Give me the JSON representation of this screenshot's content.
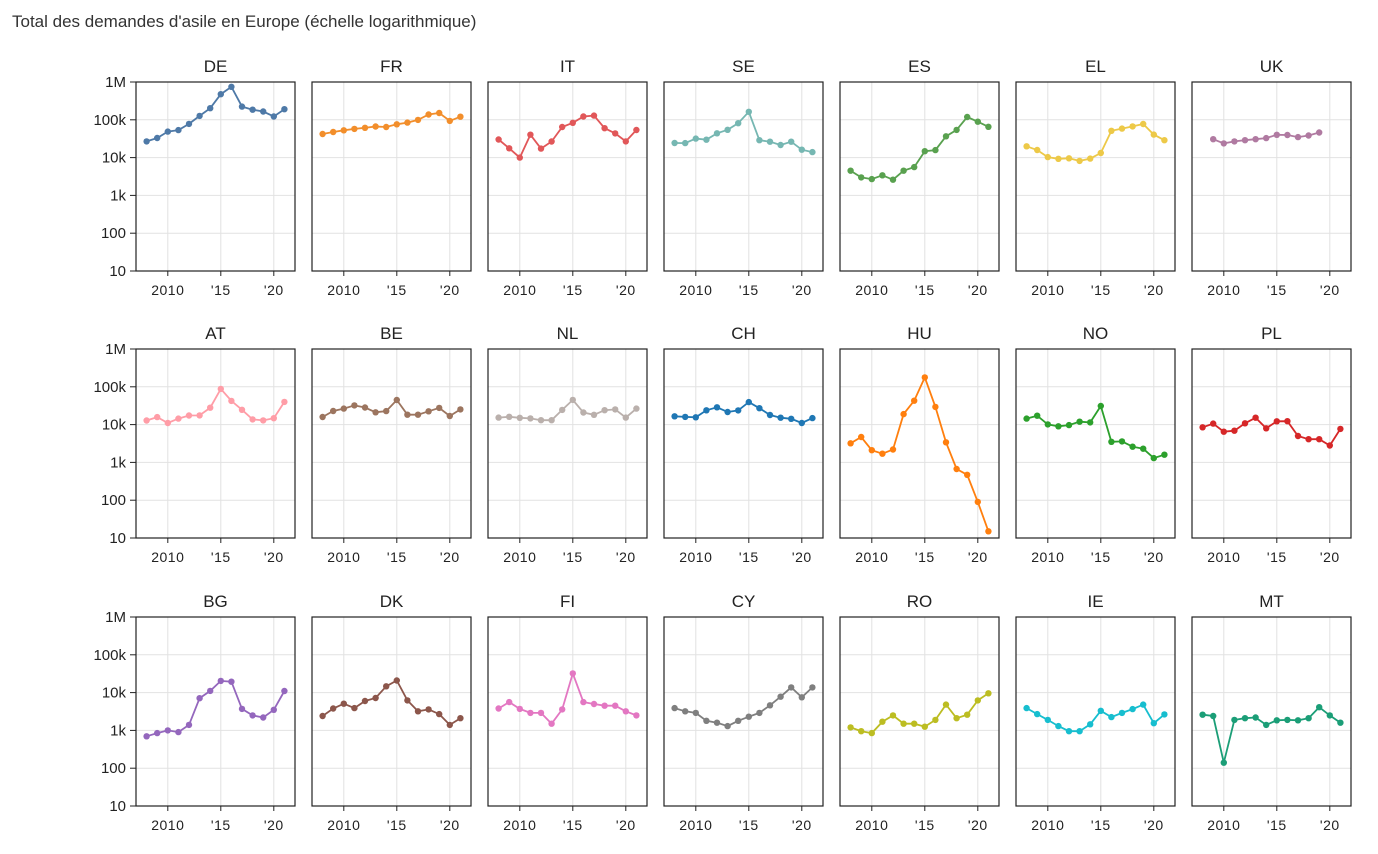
{
  "title": "Total des demandes d'asile en Europe (échelle logarithmique)",
  "chart_data": {
    "type": "line",
    "y_scale": "log",
    "ylim": [
      10,
      1000000
    ],
    "y_ticks": [
      10,
      100,
      1000,
      10000,
      100000,
      1000000
    ],
    "y_tick_labels": [
      "10",
      "100",
      "1k",
      "10k",
      "100k",
      "1M"
    ],
    "xlim": [
      2007,
      2022
    ],
    "x_ticks": [
      2010,
      2015,
      2020
    ],
    "x_tick_labels": [
      "2010",
      "'15",
      "'20"
    ],
    "grid": true,
    "layout": "small multiples, 3 rows x 7 columns",
    "series": [
      {
        "name": "DE",
        "color": "#4e79a7",
        "x": [
          2008,
          2009,
          2010,
          2011,
          2012,
          2013,
          2014,
          2015,
          2016,
          2017,
          2018,
          2019,
          2020,
          2021
        ],
        "values": [
          26900,
          33000,
          48600,
          53300,
          77700,
          127000,
          203000,
          477000,
          745000,
          223000,
          185000,
          166000,
          122000,
          191000
        ]
      },
      {
        "name": "FR",
        "color": "#f28e2b",
        "x": [
          2008,
          2009,
          2010,
          2011,
          2012,
          2013,
          2014,
          2015,
          2016,
          2017,
          2018,
          2019,
          2020,
          2021
        ],
        "values": [
          42000,
          47700,
          52800,
          57300,
          61500,
          66300,
          64300,
          76200,
          84300,
          99300,
          137700,
          151100,
          93500,
          120700
        ]
      },
      {
        "name": "IT",
        "color": "#e15759",
        "x": [
          2008,
          2009,
          2010,
          2011,
          2012,
          2013,
          2014,
          2015,
          2016,
          2017,
          2018,
          2019,
          2020,
          2021
        ],
        "values": [
          30100,
          17600,
          10000,
          40300,
          17300,
          26600,
          64600,
          83500,
          122100,
          128900,
          59900,
          43800,
          26900,
          53600
        ]
      },
      {
        "name": "SE",
        "color": "#76b7b2",
        "x": [
          2008,
          2009,
          2010,
          2011,
          2012,
          2013,
          2014,
          2015,
          2016,
          2017,
          2018,
          2019,
          2020,
          2021
        ],
        "values": [
          24400,
          24200,
          31800,
          29700,
          43900,
          54300,
          81200,
          162500,
          28800,
          26300,
          21500,
          26300,
          16200,
          14000
        ]
      },
      {
        "name": "ES",
        "color": "#59a14f",
        "x": [
          2008,
          2009,
          2010,
          2011,
          2012,
          2013,
          2014,
          2015,
          2016,
          2017,
          2018,
          2019,
          2020,
          2021
        ],
        "values": [
          4500,
          3000,
          2700,
          3400,
          2600,
          4500,
          5600,
          14800,
          15800,
          36600,
          54100,
          118300,
          88800,
          65400
        ]
      },
      {
        "name": "EL",
        "color": "#edc948",
        "x": [
          2008,
          2009,
          2010,
          2011,
          2012,
          2013,
          2014,
          2015,
          2016,
          2017,
          2018,
          2019,
          2020,
          2021
        ],
        "values": [
          19900,
          15900,
          10300,
          9300,
          9600,
          8200,
          9400,
          13200,
          51100,
          58600,
          66900,
          77300,
          40600,
          28800
        ]
      },
      {
        "name": "UK",
        "color": "#b07aa1",
        "x": [
          2009,
          2010,
          2011,
          2012,
          2013,
          2014,
          2015,
          2016,
          2017,
          2018,
          2019
        ],
        "values": [
          30700,
          23700,
          26900,
          28800,
          30600,
          32800,
          40200,
          39700,
          34800,
          38500,
          46000
        ]
      },
      {
        "name": "AT",
        "color": "#ff9da7",
        "x": [
          2008,
          2009,
          2010,
          2011,
          2012,
          2013,
          2014,
          2015,
          2016,
          2017,
          2018,
          2019,
          2020,
          2021
        ],
        "values": [
          12800,
          15800,
          11000,
          14400,
          17400,
          17500,
          28000,
          88200,
          42300,
          24700,
          13700,
          12900,
          14800,
          39900
        ]
      },
      {
        "name": "BE",
        "color": "#9c755f",
        "x": [
          2008,
          2009,
          2010,
          2011,
          2012,
          2013,
          2014,
          2015,
          2016,
          2017,
          2018,
          2019,
          2020,
          2021
        ],
        "values": [
          15900,
          22900,
          26500,
          32300,
          28400,
          21200,
          22700,
          44700,
          18300,
          18300,
          22500,
          27600,
          16900,
          25200
        ]
      },
      {
        "name": "NL",
        "color": "#bab0ac",
        "x": [
          2008,
          2009,
          2010,
          2011,
          2012,
          2013,
          2014,
          2015,
          2016,
          2017,
          2018,
          2019,
          2020,
          2021
        ],
        "values": [
          15300,
          16100,
          15100,
          14600,
          13100,
          13100,
          24500,
          44900,
          20900,
          18200,
          24000,
          25200,
          15300,
          26500
        ]
      },
      {
        "name": "CH",
        "color": "#1f77b4",
        "x": [
          2008,
          2009,
          2010,
          2011,
          2012,
          2013,
          2014,
          2015,
          2016,
          2017,
          2018,
          2019,
          2020,
          2021
        ],
        "values": [
          16600,
          16000,
          15600,
          23900,
          28600,
          21500,
          23800,
          39400,
          27200,
          18000,
          15200,
          14200,
          11000,
          14900
        ]
      },
      {
        "name": "HU",
        "color": "#ff7f0e",
        "x": [
          2008,
          2009,
          2010,
          2011,
          2012,
          2013,
          2014,
          2015,
          2016,
          2017,
          2018,
          2019,
          2020,
          2021
        ],
        "values": [
          3200,
          4700,
          2100,
          1700,
          2200,
          18900,
          42800,
          177100,
          29400,
          3400,
          670,
          470,
          90,
          15
        ]
      },
      {
        "name": "NO",
        "color": "#2ca02c",
        "x": [
          2008,
          2009,
          2010,
          2011,
          2012,
          2013,
          2014,
          2015,
          2016,
          2017,
          2018,
          2019,
          2020,
          2021
        ],
        "values": [
          14400,
          17200,
          10100,
          9000,
          9700,
          11900,
          11400,
          31100,
          3500,
          3600,
          2600,
          2300,
          1300,
          1600
        ]
      },
      {
        "name": "PL",
        "color": "#d62728",
        "x": [
          2008,
          2009,
          2010,
          2011,
          2012,
          2013,
          2014,
          2015,
          2016,
          2017,
          2018,
          2019,
          2020,
          2021
        ],
        "values": [
          8500,
          10600,
          6500,
          6900,
          10800,
          15200,
          8000,
          12200,
          12300,
          5000,
          4100,
          4100,
          2800,
          7700
        ]
      },
      {
        "name": "BG",
        "color": "#9467bd",
        "x": [
          2008,
          2009,
          2010,
          2011,
          2012,
          2013,
          2014,
          2015,
          2016,
          2017,
          2018,
          2019,
          2020,
          2021
        ],
        "values": [
          700,
          850,
          1000,
          900,
          1400,
          7100,
          11100,
          20400,
          19400,
          3700,
          2500,
          2200,
          3500,
          11000
        ]
      },
      {
        "name": "DK",
        "color": "#8c564b",
        "x": [
          2008,
          2009,
          2010,
          2011,
          2012,
          2013,
          2014,
          2015,
          2016,
          2017,
          2018,
          2019,
          2020,
          2021
        ],
        "values": [
          2400,
          3800,
          5100,
          3900,
          6000,
          7200,
          14700,
          20900,
          6200,
          3200,
          3600,
          2700,
          1400,
          2100
        ]
      },
      {
        "name": "FI",
        "color": "#e377c2",
        "x": [
          2008,
          2009,
          2010,
          2011,
          2012,
          2013,
          2014,
          2015,
          2016,
          2017,
          2018,
          2019,
          2020,
          2021
        ],
        "values": [
          3800,
          5600,
          3700,
          2900,
          2900,
          1500,
          3600,
          32300,
          5600,
          5000,
          4500,
          4500,
          3200,
          2500
        ]
      },
      {
        "name": "CY",
        "color": "#7f7f7f",
        "x": [
          2008,
          2009,
          2010,
          2011,
          2012,
          2013,
          2014,
          2015,
          2016,
          2017,
          2018,
          2019,
          2020,
          2021
        ],
        "values": [
          3900,
          3200,
          2900,
          1800,
          1600,
          1300,
          1800,
          2300,
          2900,
          4600,
          7800,
          13700,
          7500,
          13700
        ]
      },
      {
        "name": "RO",
        "color": "#bcbd22",
        "x": [
          2008,
          2009,
          2010,
          2011,
          2012,
          2013,
          2014,
          2015,
          2016,
          2017,
          2018,
          2019,
          2020,
          2021
        ],
        "values": [
          1200,
          950,
          850,
          1700,
          2500,
          1500,
          1500,
          1250,
          1900,
          4800,
          2100,
          2600,
          6200,
          9600
        ]
      },
      {
        "name": "IE",
        "color": "#17becf",
        "x": [
          2008,
          2009,
          2010,
          2011,
          2012,
          2013,
          2014,
          2015,
          2016,
          2017,
          2018,
          2019,
          2020,
          2021
        ],
        "values": [
          3900,
          2700,
          1900,
          1300,
          950,
          950,
          1450,
          3300,
          2250,
          2900,
          3650,
          4800,
          1550,
          2650
        ]
      },
      {
        "name": "MT",
        "color": "#1b9e77",
        "x": [
          2008,
          2009,
          2010,
          2011,
          2012,
          2013,
          2014,
          2015,
          2016,
          2017,
          2018,
          2019,
          2020,
          2021
        ],
        "values": [
          2600,
          2400,
          140,
          1900,
          2100,
          2200,
          1400,
          1850,
          1900,
          1850,
          2100,
          4100,
          2500,
          1600
        ]
      }
    ]
  }
}
